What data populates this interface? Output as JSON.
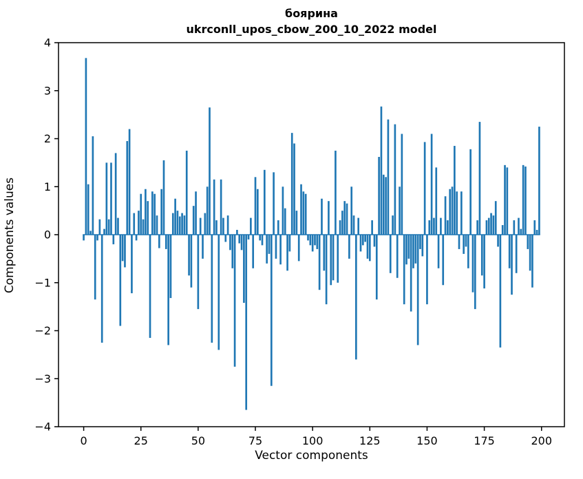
{
  "figure": {
    "title_line1": "боярина",
    "title_line2": "ukrconll_upos_cbow_200_10_2022 model",
    "xlabel": "Vector components",
    "ylabel": "Components values"
  },
  "chart_data": {
    "type": "bar",
    "title": "боярина\nukrconll_upos_cbow_200_10_2022 model",
    "xlabel": "Vector components",
    "ylabel": "Components values",
    "xlim": [
      -11,
      210
    ],
    "ylim": [
      -4,
      4
    ],
    "xticks": [
      0,
      25,
      50,
      75,
      100,
      125,
      150,
      175,
      200
    ],
    "yticks": [
      -4,
      -3,
      -2,
      -1,
      0,
      1,
      2,
      3,
      4
    ],
    "grid": false,
    "legend": "none",
    "bar_color": "#1f77b4",
    "x_start": 0,
    "categories_note": "x = vector component index 0..199",
    "values": [
      -0.12,
      3.68,
      1.05,
      0.08,
      2.05,
      -1.35,
      -0.12,
      0.32,
      -2.25,
      0.12,
      1.5,
      0.32,
      1.5,
      -0.2,
      1.7,
      0.35,
      -1.9,
      -0.55,
      -0.68,
      1.95,
      2.2,
      -1.22,
      0.45,
      -0.12,
      0.5,
      0.85,
      0.32,
      0.95,
      0.7,
      -2.15,
      0.9,
      0.85,
      0.4,
      -0.28,
      0.95,
      1.55,
      -0.3,
      -2.3,
      -1.32,
      0.45,
      0.75,
      0.5,
      0.38,
      0.45,
      0.4,
      1.75,
      -0.85,
      -1.1,
      0.6,
      0.9,
      -1.55,
      0.35,
      -0.5,
      0.45,
      1.0,
      2.65,
      -2.25,
      1.15,
      0.3,
      -2.4,
      1.15,
      0.35,
      -0.15,
      0.4,
      -0.32,
      -0.7,
      -2.75,
      0.1,
      -0.18,
      -0.32,
      -1.42,
      -3.65,
      -0.1,
      0.35,
      -0.7,
      1.2,
      0.95,
      -0.12,
      -0.22,
      1.35,
      -0.6,
      -0.4,
      -3.15,
      1.3,
      -0.5,
      0.3,
      -0.62,
      1.0,
      0.55,
      -0.75,
      -0.35,
      2.12,
      1.9,
      0.5,
      -0.55,
      1.05,
      0.9,
      0.85,
      -0.12,
      -0.22,
      -0.35,
      -0.22,
      -0.3,
      -1.15,
      0.75,
      -0.75,
      -1.45,
      0.7,
      -1.05,
      -0.95,
      1.75,
      -1.0,
      0.3,
      0.5,
      0.7,
      0.65,
      -0.5,
      1.0,
      0.4,
      -2.6,
      0.35,
      -0.35,
      -0.22,
      -0.15,
      -0.5,
      -0.55,
      0.3,
      -0.25,
      -1.35,
      1.62,
      2.67,
      1.25,
      1.2,
      2.4,
      -0.8,
      0.4,
      2.3,
      -0.9,
      1.0,
      2.1,
      -1.45,
      -0.62,
      -0.5,
      -1.6,
      -0.7,
      -0.6,
      -2.3,
      -0.3,
      -0.45,
      1.93,
      -1.45,
      0.3,
      2.1,
      0.35,
      1.4,
      -0.7,
      0.35,
      -1.05,
      0.8,
      0.3,
      0.95,
      1.0,
      1.85,
      0.9,
      -0.3,
      0.9,
      -0.4,
      -0.25,
      -0.7,
      1.78,
      -1.2,
      -1.55,
      0.3,
      2.35,
      -0.85,
      -1.12,
      0.3,
      0.35,
      0.45,
      0.4,
      0.7,
      -0.25,
      -2.35,
      0.2,
      1.45,
      1.4,
      -0.7,
      -1.25,
      0.3,
      -0.8,
      0.35,
      0.12,
      1.45,
      1.42,
      -0.3,
      -0.75,
      -1.1,
      0.3,
      0.1,
      2.25
    ]
  }
}
